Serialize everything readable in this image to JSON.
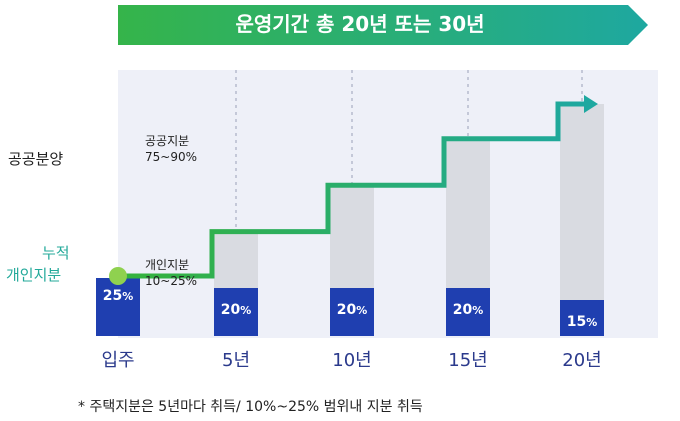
{
  "banner": {
    "title": "운영기간 총 20년 또는 30년"
  },
  "row_labels": {
    "public_sale": "공공분양",
    "cumulative_line1": "누적",
    "cumulative_line2": "개인지분"
  },
  "annotations": {
    "public_share_title": "공공지분",
    "public_share_range": "75~90%",
    "private_share_title": "개인지분",
    "private_share_range": "10~25%"
  },
  "footnote": "* 주택지분은 5년마다 취득/ 10%~25% 범위내 지분 취득",
  "chart_data": {
    "type": "bar",
    "categories": [
      "입주",
      "5년",
      "10년",
      "15년",
      "20년"
    ],
    "series": [
      {
        "values": [
          25,
          20,
          20,
          20,
          15
        ],
        "labels": [
          "25%",
          "20%",
          "20%",
          "20%",
          "15%"
        ]
      },
      {
        "values": [
          25,
          45,
          65,
          85,
          100
        ]
      }
    ],
    "ylim": [
      0,
      100
    ],
    "colors": {
      "private": "#1f3fb0",
      "public": "#d9dbe1",
      "line": "#35b23a",
      "arrow": "#1ea8a0",
      "banner_start": "#35b44a",
      "banner_end": "#1ea8a0"
    }
  }
}
